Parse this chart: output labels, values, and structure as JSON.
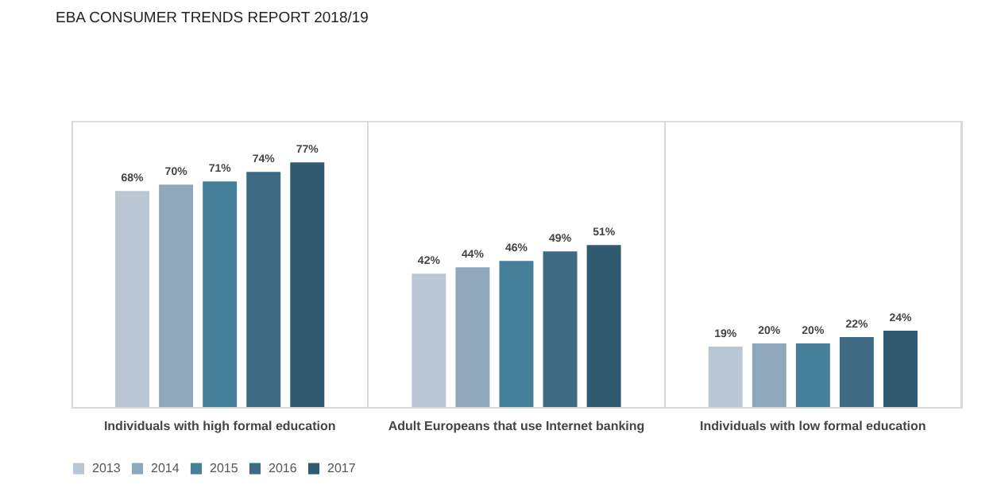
{
  "chart_data": {
    "type": "bar",
    "title": "EBA CONSUMER TRENDS REPORT 2018/19",
    "categories": [
      "Individuals with high formal education",
      "Adult Europeans that use Internet banking",
      "Individuals with low formal education"
    ],
    "series": [
      {
        "name": "2013",
        "color": "#b8c7d3",
        "values": [
          68,
          42,
          19
        ],
        "value_labels": [
          "68%",
          "42%",
          "19%"
        ]
      },
      {
        "name": "2014",
        "color": "#8fa7ba",
        "values": [
          70,
          44,
          20
        ],
        "value_labels": [
          "70%",
          "44%",
          "20%"
        ]
      },
      {
        "name": "2015",
        "color": "#467f99",
        "values": [
          71,
          46,
          20
        ],
        "value_labels": [
          "71%",
          "46%",
          "20%"
        ]
      },
      {
        "name": "2016",
        "color": "#3e6b83",
        "values": [
          74,
          49,
          22
        ],
        "value_labels": [
          "74%",
          "49%",
          "22%"
        ]
      },
      {
        "name": "2017",
        "color": "#2f5a70",
        "values": [
          77,
          51,
          24
        ],
        "value_labels": [
          "77%",
          "51%",
          "24%"
        ]
      }
    ],
    "legend": "bottom",
    "grid": "x",
    "tick_labels": "x"
  }
}
